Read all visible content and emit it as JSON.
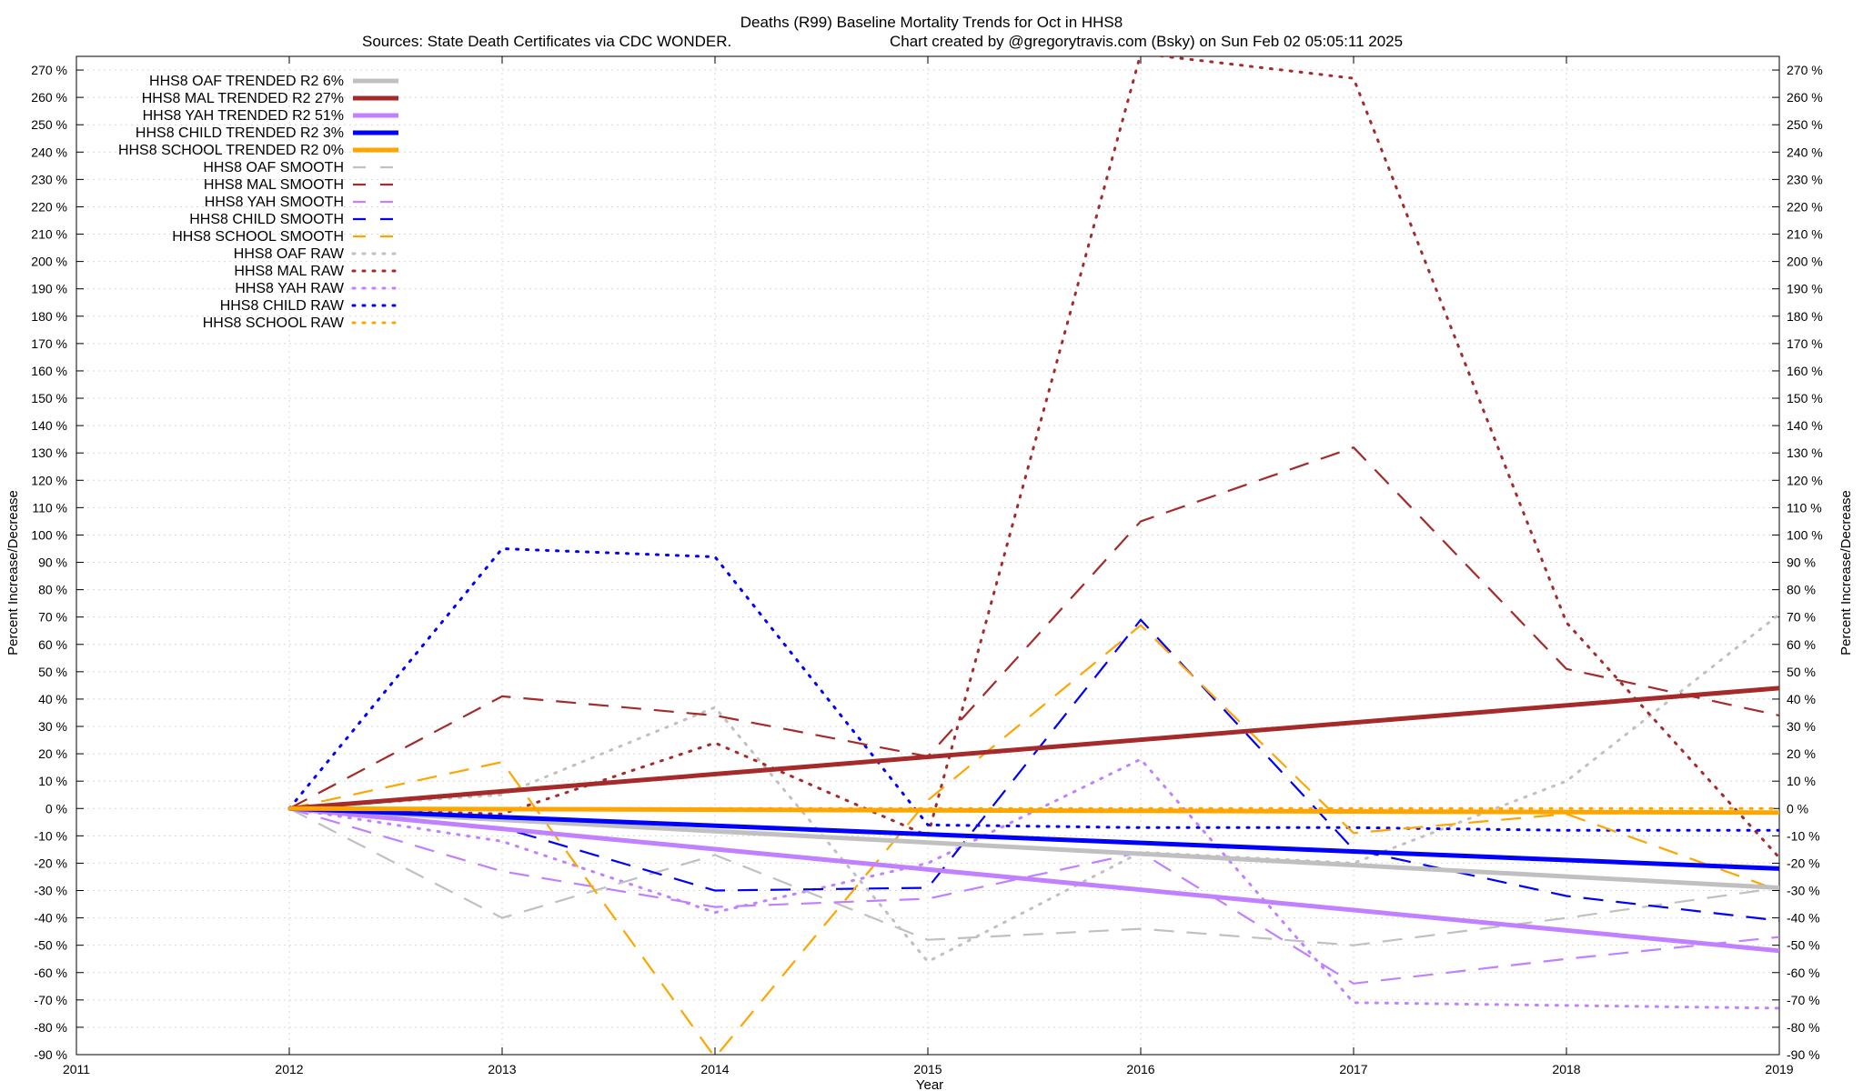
{
  "chart_data": {
    "type": "line",
    "title": "Deaths (R99)  Baseline Mortality Trends for Oct in HHS8",
    "subtitle_left": "Sources: State Death Certificates via CDC WONDER.",
    "subtitle_right": "Chart created by @gregorytravis.com (Bsky) on Sun Feb 02 05:05:11 2025",
    "xlabel": "Year",
    "ylabel": "Percent Increase/Decrease",
    "ylabel_right": "Percent Increase/Decrease",
    "xlim": [
      2011,
      2019
    ],
    "ylim": [
      -90,
      275
    ],
    "x_ticks": [
      "2011",
      "2012",
      "2013",
      "2014",
      "2015",
      "2016",
      "2017",
      "2018",
      "2019"
    ],
    "y_ticks": [
      "270 %",
      "260 %",
      "250 %",
      "240 %",
      "230 %",
      "220 %",
      "210 %",
      "200 %",
      "190 %",
      "180 %",
      "170 %",
      "160 %",
      "150 %",
      "140 %",
      "130 %",
      "120 %",
      "110 %",
      "100 %",
      "90 %",
      "80 %",
      "70 %",
      "60 %",
      "50 %",
      "40 %",
      "30 %",
      "20 %",
      "10 %",
      "0 %",
      "-10 %",
      "-20 %",
      "-30 %",
      "-40 %",
      "-50 %",
      "-60 %",
      "-70 %",
      "-80 %",
      "-90 %"
    ],
    "y_tick_values": [
      270,
      260,
      250,
      240,
      230,
      220,
      210,
      200,
      190,
      180,
      170,
      160,
      150,
      140,
      130,
      120,
      110,
      100,
      90,
      80,
      70,
      60,
      50,
      40,
      30,
      20,
      10,
      0,
      -10,
      -20,
      -30,
      -40,
      -50,
      -60,
      -70,
      -80,
      -90
    ],
    "grid": true,
    "legend_position": "top-left",
    "series": [
      {
        "name": "HHS8 OAF RAW",
        "color": "#c0c0c0",
        "style": "dotted",
        "x": [
          2012,
          2013,
          2014,
          2015,
          2016,
          2017,
          2018,
          2019
        ],
        "values": [
          0,
          5,
          37,
          -56,
          -16,
          -20,
          10,
          71
        ]
      },
      {
        "name": "HHS8 MAL RAW",
        "color": "#a52a2a",
        "style": "dotted",
        "x": [
          2012,
          2013,
          2014,
          2015,
          2016,
          2017,
          2018,
          2019
        ],
        "values": [
          0,
          -2,
          24,
          -10,
          276,
          267,
          68,
          -18
        ]
      },
      {
        "name": "HHS8 YAH RAW",
        "color": "#c080ff",
        "style": "dotted",
        "x": [
          2012,
          2013,
          2014,
          2015,
          2016,
          2017,
          2018,
          2019
        ],
        "values": [
          0,
          -12,
          -38,
          -20,
          18,
          -71,
          -72,
          -73
        ]
      },
      {
        "name": "HHS8 CHILD RAW",
        "color": "#0000ff",
        "style": "dotted",
        "x": [
          2012,
          2013,
          2014,
          2015,
          2016,
          2017,
          2018,
          2019
        ],
        "values": [
          0,
          95,
          92,
          -6,
          -7,
          -7,
          -8,
          -8
        ]
      },
      {
        "name": "HHS8 SCHOOL RAW",
        "color": "#ffa500",
        "style": "dotted",
        "x": [
          2012,
          2013,
          2014,
          2015,
          2016,
          2017,
          2018,
          2019
        ],
        "values": [
          0,
          0,
          0,
          0,
          0,
          0,
          0,
          0
        ]
      },
      {
        "name": "HHS8 OAF SMOOTH",
        "color": "#c0c0c0",
        "style": "dashed",
        "x": [
          2012,
          2013,
          2014,
          2015,
          2016,
          2017,
          2018,
          2019
        ],
        "values": [
          0,
          -40,
          -17,
          -48,
          -44,
          -50,
          -40,
          -29
        ]
      },
      {
        "name": "HHS8 MAL SMOOTH",
        "color": "#a52a2a",
        "style": "dashed",
        "x": [
          2012,
          2013,
          2014,
          2015,
          2016,
          2017,
          2018,
          2019
        ],
        "values": [
          0,
          41,
          34,
          19,
          105,
          132,
          51,
          34
        ]
      },
      {
        "name": "HHS8 YAH SMOOTH",
        "color": "#c080ff",
        "style": "dashed",
        "x": [
          2012,
          2013,
          2014,
          2015,
          2016,
          2017,
          2018,
          2019
        ],
        "values": [
          0,
          -23,
          -36,
          -33,
          -16,
          -64,
          -55,
          -47
        ]
      },
      {
        "name": "HHS8 CHILD SMOOTH",
        "color": "#0000ff",
        "style": "dashed",
        "x": [
          2012,
          2013,
          2014,
          2015,
          2016,
          2017,
          2018,
          2019
        ],
        "values": [
          0,
          -7,
          -30,
          -29,
          69,
          -15,
          -32,
          -41
        ]
      },
      {
        "name": "HHS8 SCHOOL SMOOTH",
        "color": "#ffa500",
        "style": "dashed",
        "x": [
          2012,
          2013,
          2014,
          2015,
          2016,
          2017,
          2018,
          2019
        ],
        "values": [
          0,
          17,
          -91,
          3,
          67,
          -9,
          -2,
          -30
        ]
      },
      {
        "name": "HHS8 OAF TRENDED R2  6%",
        "color": "#c0c0c0",
        "style": "solid",
        "x": [
          2012,
          2019
        ],
        "values": [
          0,
          -29
        ]
      },
      {
        "name": "HHS8 MAL TRENDED R2  27%",
        "color": "#a52a2a",
        "style": "solid",
        "x": [
          2012,
          2019
        ],
        "values": [
          0,
          44
        ]
      },
      {
        "name": "HHS8 YAH TRENDED R2  51%",
        "color": "#c080ff",
        "style": "solid",
        "x": [
          2012,
          2019
        ],
        "values": [
          0,
          -52
        ]
      },
      {
        "name": "HHS8 CHILD TRENDED R2   3%",
        "color": "#0000ff",
        "style": "solid",
        "x": [
          2012,
          2019
        ],
        "values": [
          0,
          -22
        ]
      },
      {
        "name": "HHS8 SCHOOL TRENDED R2   0%",
        "color": "#ffa500",
        "style": "solid",
        "x": [
          2012,
          2019
        ],
        "values": [
          0,
          -1.5
        ]
      }
    ],
    "legend_order": [
      "HHS8 OAF TRENDED R2  6%",
      "HHS8 MAL TRENDED R2  27%",
      "HHS8 YAH TRENDED R2  51%",
      "HHS8 CHILD TRENDED R2   3%",
      "HHS8 SCHOOL TRENDED R2   0%",
      "HHS8 OAF SMOOTH",
      "HHS8 MAL SMOOTH",
      "HHS8 YAH SMOOTH",
      "HHS8 CHILD SMOOTH",
      "HHS8 SCHOOL SMOOTH",
      "HHS8 OAF RAW",
      "HHS8 MAL RAW",
      "HHS8 YAH RAW",
      "HHS8 CHILD RAW",
      "HHS8 SCHOOL RAW"
    ]
  }
}
